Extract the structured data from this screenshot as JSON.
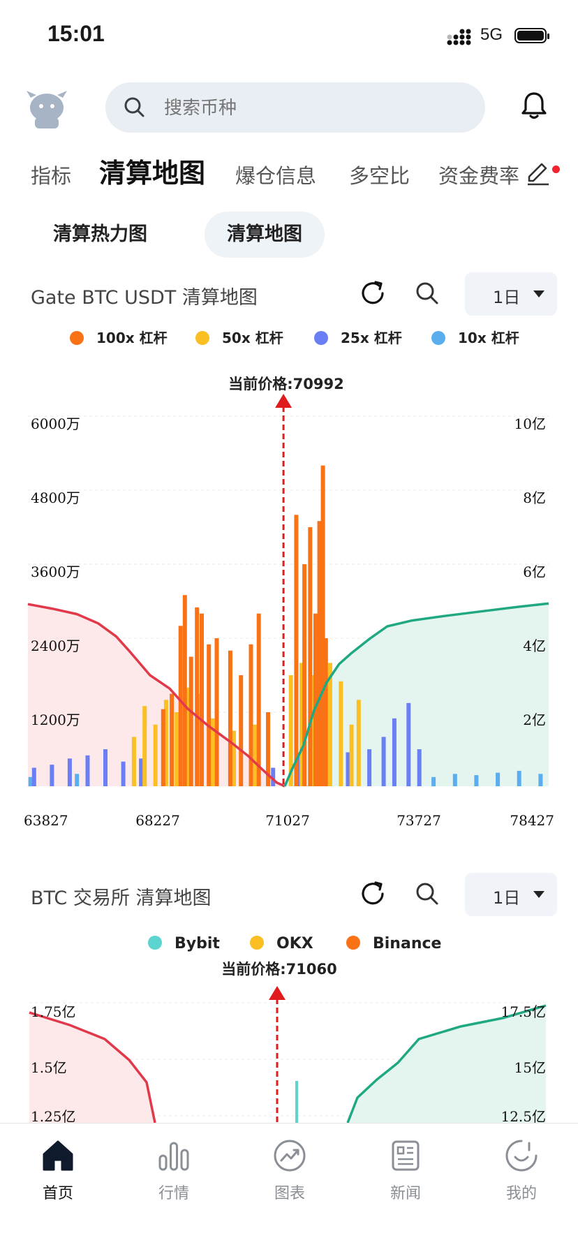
{
  "status_bar": {
    "time": "15:01",
    "network": "5G"
  },
  "header": {
    "search_placeholder": "搜索币种"
  },
  "tabs": [
    {
      "label": "指标",
      "active": false
    },
    {
      "label": "清算地图",
      "active": true
    },
    {
      "label": "爆仓信息",
      "active": false
    },
    {
      "label": "多空比",
      "active": false
    },
    {
      "label": "资金费率",
      "active": false
    }
  ],
  "subtabs": [
    {
      "label": "清算热力图",
      "active": false
    },
    {
      "label": "清算地图",
      "active": true
    }
  ],
  "card1": {
    "title": "Gate BTC USDT 清算地图",
    "period": "1日",
    "legend": [
      {
        "label": "100x 杠杆",
        "color": "#f97316"
      },
      {
        "label": "50x 杠杆",
        "color": "#fbbf24"
      },
      {
        "label": "25x 杠杆",
        "color": "#6b7ff5"
      },
      {
        "label": "10x 杠杆",
        "color": "#5aaeee"
      }
    ],
    "current_price_label": "当前价格:70992"
  },
  "card2": {
    "title": "BTC 交易所  清算地图",
    "period": "1日",
    "legend": [
      {
        "label": "Bybit",
        "color": "#5cd4cf"
      },
      {
        "label": "OKX",
        "color": "#fbbf24"
      },
      {
        "label": "Binance",
        "color": "#f97316"
      }
    ],
    "current_price_label": "当前价格:71060"
  },
  "chart_data": [
    {
      "type": "bar",
      "title": "Gate BTC USDT 清算地图",
      "current_price": 70992,
      "x_ticks": [
        "63827",
        "68227",
        "71027",
        "73727",
        "78427"
      ],
      "y_left_ticks": [
        "1200万",
        "2400万",
        "3600万",
        "4800万",
        "6000万"
      ],
      "y_right_ticks": [
        "2亿",
        "4亿",
        "6亿",
        "8亿",
        "10亿"
      ],
      "ylim_left": [
        0,
        60000000
      ],
      "ylim_right": [
        0,
        1000000000
      ],
      "x_range": [
        63827,
        78427
      ],
      "series": [
        {
          "name": "100x 杠杆",
          "color": "#f97316",
          "values": [
            [
              67620,
              12500000
            ],
            [
              67860,
              15000000
            ],
            [
              68107,
              26000000
            ],
            [
              68227,
              31000000
            ],
            [
              68400,
              21000000
            ],
            [
              68567,
              29000000
            ],
            [
              68700,
              28000000
            ],
            [
              68900,
              23000000
            ],
            [
              69120,
              24000000
            ],
            [
              69500,
              22000000
            ],
            [
              69800,
              18000000
            ],
            [
              70080,
              23000000
            ],
            [
              70300,
              28000000
            ],
            [
              70560,
              12000000
            ],
            [
              71350,
              44000000
            ],
            [
              71580,
              36000000
            ],
            [
              71740,
              42000000
            ],
            [
              71890,
              28000000
            ],
            [
              72000,
              43000000
            ],
            [
              72097,
              52000000
            ],
            [
              72180,
              24000000
            ]
          ]
        },
        {
          "name": "50x 杠杆",
          "color": "#fbbf24",
          "values": [
            [
              66800,
              8000000
            ],
            [
              67100,
              13000000
            ],
            [
              67400,
              10000000
            ],
            [
              67700,
              14000000
            ],
            [
              68000,
              12000000
            ],
            [
              68300,
              16000000
            ],
            [
              68600,
              15000000
            ],
            [
              69000,
              11000000
            ],
            [
              69600,
              9000000
            ],
            [
              70200,
              10000000
            ],
            [
              71200,
              18000000
            ],
            [
              71500,
              20000000
            ],
            [
              71800,
              18000000
            ],
            [
              72300,
              20000000
            ],
            [
              72600,
              17000000
            ],
            [
              72900,
              10000000
            ],
            [
              73100,
              14000000
            ]
          ]
        },
        {
          "name": "25x 杠杆",
          "color": "#6b7ff5",
          "values": [
            [
              64000,
              3000000
            ],
            [
              64500,
              3500000
            ],
            [
              65000,
              4500000
            ],
            [
              65500,
              5000000
            ],
            [
              66000,
              6000000
            ],
            [
              66500,
              4000000
            ],
            [
              67000,
              4500000
            ],
            [
              70700,
              3000000
            ],
            [
              71400,
              5000000
            ],
            [
              72000,
              6000000
            ],
            [
              72800,
              5500000
            ],
            [
              73400,
              6000000
            ],
            [
              73800,
              8000000
            ],
            [
              74100,
              11000000
            ],
            [
              74500,
              13500000
            ],
            [
              74800,
              6000000
            ]
          ]
        },
        {
          "name": "10x 杠杆",
          "color": "#5aaeee",
          "values": [
            [
              63900,
              1500000
            ],
            [
              65200,
              2000000
            ],
            [
              75200,
              1500000
            ],
            [
              75800,
              2000000
            ],
            [
              76400,
              1800000
            ],
            [
              77000,
              2200000
            ],
            [
              77600,
              2500000
            ],
            [
              78200,
              2000000
            ]
          ]
        }
      ],
      "cumulative_short": [
        [
          63827,
          492000000
        ],
        [
          64500,
          480000000
        ],
        [
          65200,
          465000000
        ],
        [
          65800,
          440000000
        ],
        [
          66300,
          405000000
        ],
        [
          66700,
          362000000
        ],
        [
          67250,
          300000000
        ],
        [
          67800,
          264000000
        ],
        [
          68300,
          210000000
        ],
        [
          68900,
          162000000
        ],
        [
          69500,
          120000000
        ],
        [
          70000,
          82000000
        ],
        [
          70400,
          45000000
        ],
        [
          70800,
          10000000
        ],
        [
          71027,
          0
        ]
      ],
      "cumulative_long": [
        [
          71027,
          0
        ],
        [
          71250,
          50000000
        ],
        [
          71550,
          110000000
        ],
        [
          71850,
          205000000
        ],
        [
          72200,
          280000000
        ],
        [
          72550,
          330000000
        ],
        [
          72900,
          360000000
        ],
        [
          73400,
          398000000
        ],
        [
          73900,
          432000000
        ],
        [
          74600,
          448000000
        ],
        [
          75500,
          460000000
        ],
        [
          76500,
          472000000
        ],
        [
          77500,
          484000000
        ],
        [
          78427,
          494000000
        ]
      ]
    },
    {
      "type": "bar",
      "title": "BTC 交易所  清算地图",
      "current_price": 71060,
      "y_left_ticks": [
        "1.25亿",
        "1.5亿",
        "1.75亿"
      ],
      "y_right_ticks": [
        "12.5亿",
        "15亿",
        "17.5亿"
      ],
      "series": [
        {
          "name": "Bybit",
          "color": "#5cd4cf"
        },
        {
          "name": "OKX",
          "color": "#fbbf24"
        },
        {
          "name": "Binance",
          "color": "#f97316"
        }
      ]
    }
  ]
}
